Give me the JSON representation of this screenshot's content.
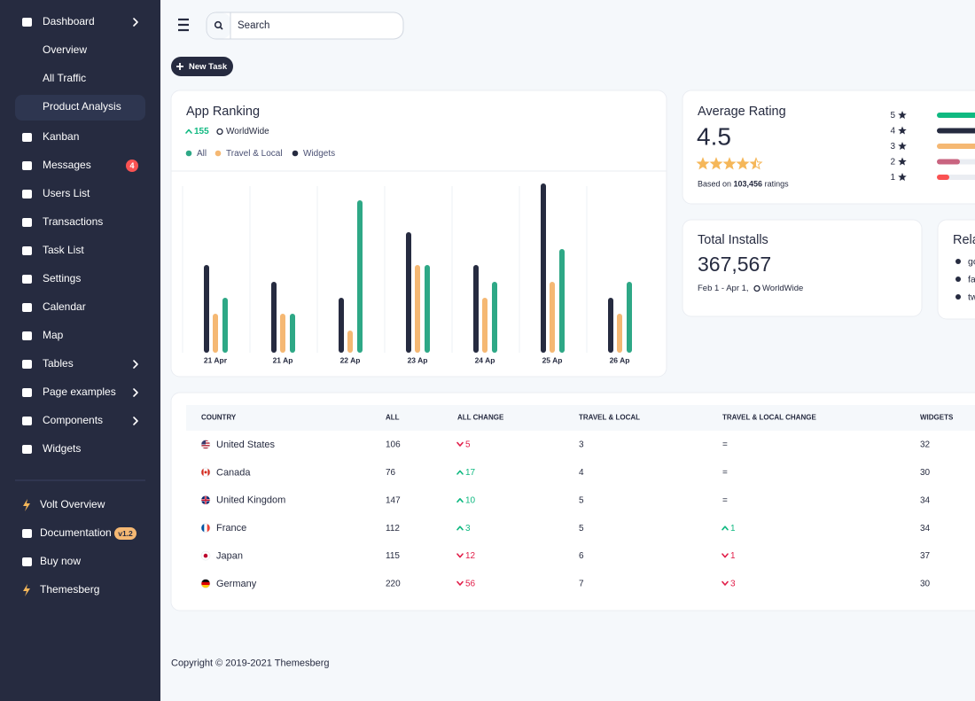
{
  "sidebar": {
    "items": [
      {
        "label": "Dashboard",
        "chevron": true
      },
      {
        "label": "Overview",
        "sub": true
      },
      {
        "label": "All Traffic",
        "sub": true
      },
      {
        "label": "Product Analysis",
        "sub": true,
        "active": true
      },
      {
        "label": "Kanban"
      },
      {
        "label": "Messages",
        "badge": 4
      },
      {
        "label": "Users List"
      },
      {
        "label": "Transactions"
      },
      {
        "label": "Task List"
      },
      {
        "label": "Settings"
      },
      {
        "label": "Calendar"
      },
      {
        "label": "Map"
      },
      {
        "label": "Tables",
        "chevron": true
      },
      {
        "label": "Page examples",
        "chevron": true
      },
      {
        "label": "Components",
        "chevron": true
      },
      {
        "label": "Widgets"
      }
    ],
    "footer_items": [
      {
        "label": "Volt Overview",
        "accent": true
      },
      {
        "label": "Documentation",
        "badge": "v1.2"
      },
      {
        "label": "Buy now"
      },
      {
        "label": "Themesberg",
        "accent": true
      }
    ]
  },
  "search": {
    "placeholder": "Search"
  },
  "new_task": "New Task",
  "app_ranking": {
    "title": "App Ranking",
    "change": 155,
    "region": "WorldWide"
  },
  "chart_data": {
    "type": "bar",
    "categories": [
      "21 Apr",
      "21 Ap",
      "22 Ap",
      "23 Ap",
      "24 Ap",
      "25 Ap",
      "26 Ap"
    ],
    "series": [
      {
        "name": "All",
        "color": "#2ea886",
        "values": [
          62,
          44,
          172,
          99,
          80,
          117,
          80
        ]
      },
      {
        "name": "Travel & Local",
        "color": "#f5b873",
        "values": [
          44,
          44,
          25,
          99,
          62,
          80,
          44
        ]
      },
      {
        "name": "Widgets",
        "color": "#262b40",
        "values": [
          99,
          80,
          62,
          136,
          99,
          191,
          62
        ]
      }
    ]
  },
  "rating": {
    "title": "Average Rating",
    "value": 4.5,
    "based_on": "Based on",
    "count": "103,456",
    "suffix": "ratings",
    "rows": [
      {
        "stars": 5,
        "percent": 70,
        "color": "#10b981"
      },
      {
        "stars": 4,
        "percent": 45,
        "color": "#262b40"
      },
      {
        "stars": 3,
        "percent": 30,
        "color": "#f5b873"
      },
      {
        "stars": 2,
        "percent": 13,
        "color": "#c96480"
      },
      {
        "stars": 1,
        "percent": 7,
        "color": "#fa5252"
      }
    ]
  },
  "installs": {
    "title": "Total Installs",
    "value": "367,567",
    "period": "Feb 1 - Apr 1,",
    "region": "WorldWide"
  },
  "related": {
    "title": "Rela",
    "items": [
      "go",
      "fa",
      "tw"
    ]
  },
  "table": {
    "columns": [
      "COUNTRY",
      "ALL",
      "ALL CHANGE",
      "TRAVEL & LOCAL",
      "TRAVEL & LOCAL CHANGE",
      "WIDGETS"
    ],
    "rows": [
      {
        "flag": "us",
        "country": "United States",
        "all": 106,
        "all_change": {
          "trend": "down",
          "value": 5
        },
        "travel": 3,
        "travel_change": {
          "value": "="
        },
        "widgets": 32
      },
      {
        "flag": "ca",
        "country": "Canada",
        "all": 76,
        "all_change": {
          "trend": "up",
          "value": 17
        },
        "travel": 4,
        "travel_change": {
          "value": "="
        },
        "widgets": 30
      },
      {
        "flag": "gb",
        "country": "United Kingdom",
        "all": 147,
        "all_change": {
          "trend": "up",
          "value": 10
        },
        "travel": 5,
        "travel_change": {
          "value": "="
        },
        "widgets": 34
      },
      {
        "flag": "fr",
        "country": "France",
        "all": 112,
        "all_change": {
          "trend": "up",
          "value": 3
        },
        "travel": 5,
        "travel_change": {
          "trend": "up",
          "value": 1
        },
        "widgets": 34
      },
      {
        "flag": "jp",
        "country": "Japan",
        "all": 115,
        "all_change": {
          "trend": "down",
          "value": 12
        },
        "travel": 6,
        "travel_change": {
          "trend": "down",
          "value": 1
        },
        "widgets": 37
      },
      {
        "flag": "de",
        "country": "Germany",
        "all": 220,
        "all_change": {
          "trend": "down",
          "value": 56
        },
        "travel": 7,
        "travel_change": {
          "trend": "down",
          "value": 3
        },
        "widgets": 30
      }
    ]
  },
  "footer": "Copyright © 2019-2021 Themesberg"
}
